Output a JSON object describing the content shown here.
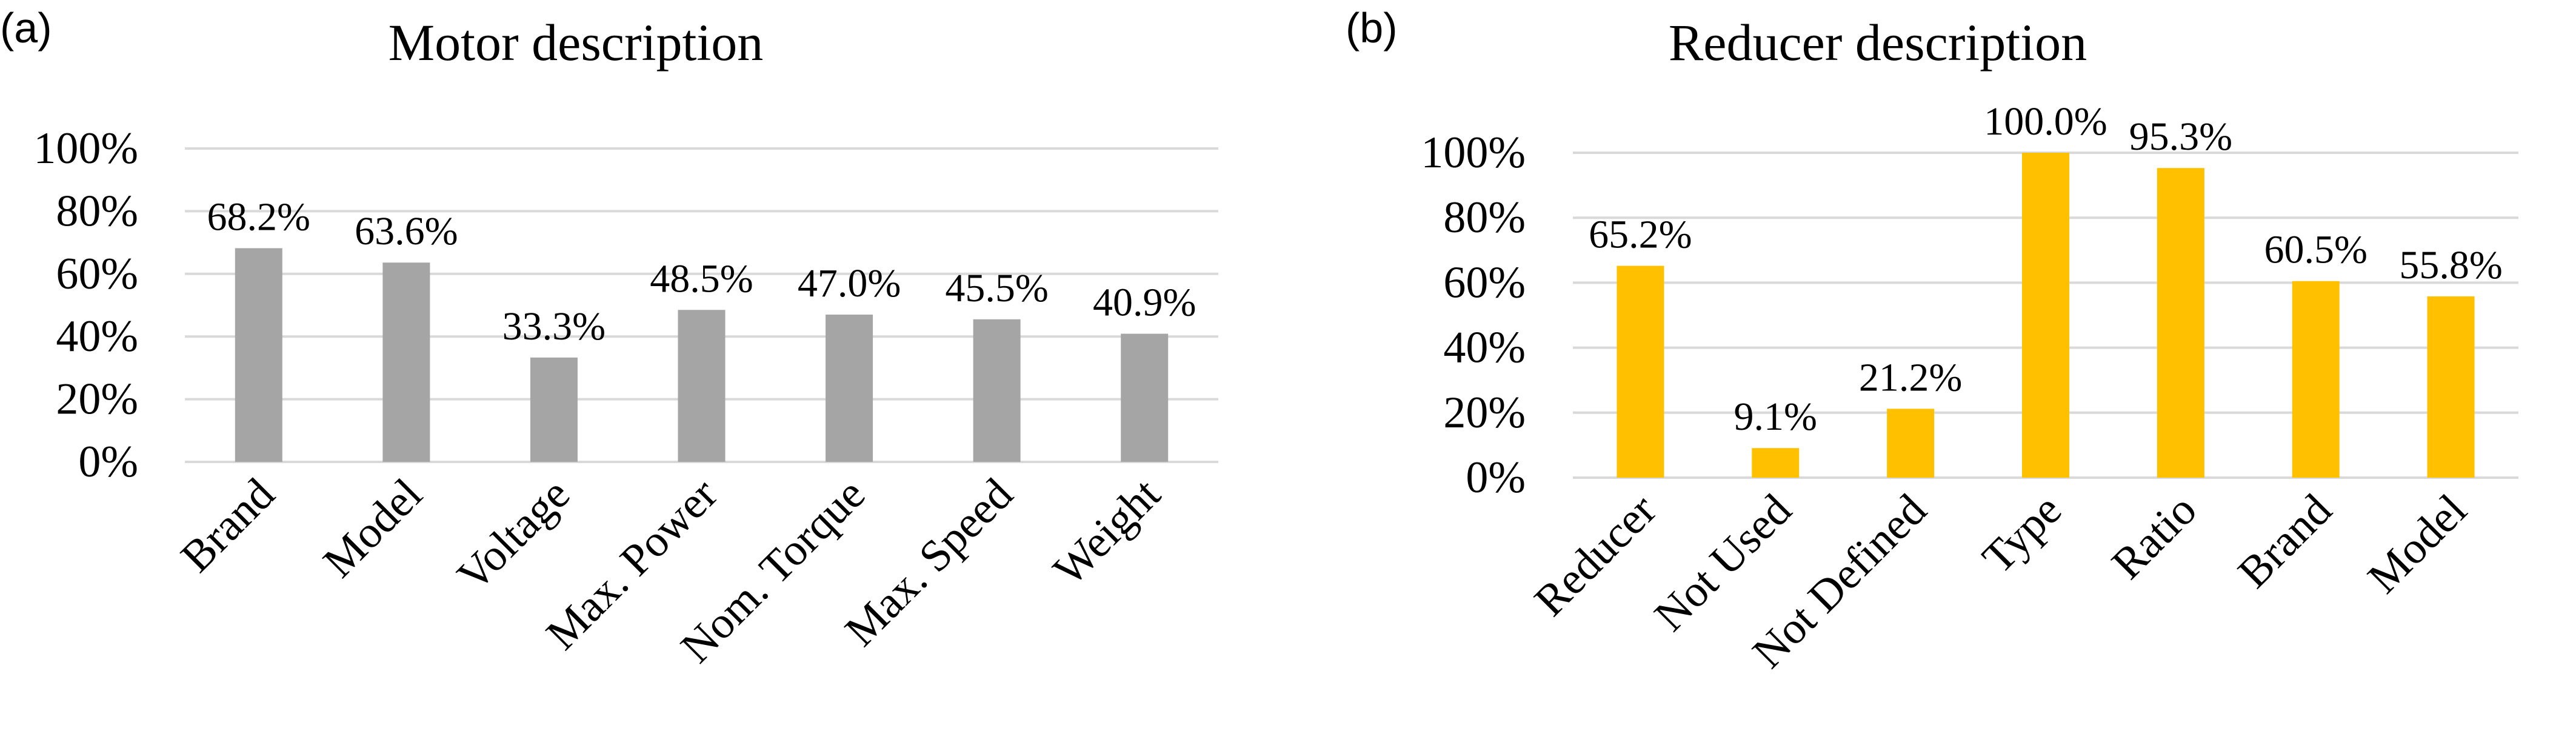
{
  "panels": [
    {
      "label": "(a)",
      "title": "Motor description"
    },
    {
      "label": "(b)",
      "title": "Reducer description"
    }
  ],
  "chart_data": [
    {
      "type": "bar",
      "title": "Motor description",
      "categories": [
        "Brand",
        "Model",
        "Voltage",
        "Max. Power",
        "Nom. Torque",
        "Max. Speed",
        "Weight"
      ],
      "values": [
        68.2,
        63.6,
        33.3,
        48.5,
        47.0,
        45.5,
        40.9
      ],
      "data_labels": [
        "68.2%",
        "63.6%",
        "33.3%",
        "48.5%",
        "47.0%",
        "45.5%",
        "40.9%"
      ],
      "yticks": [
        "0%",
        "20%",
        "40%",
        "60%",
        "80%",
        "100%"
      ],
      "ylim": [
        0,
        100
      ],
      "grid": true,
      "color": "#a5a5a5"
    },
    {
      "type": "bar",
      "title": "Reducer description",
      "categories": [
        "Reducer",
        "Not Used",
        "Not Defined",
        "Type",
        "Ratio",
        "Brand",
        "Model"
      ],
      "values": [
        65.2,
        9.1,
        21.2,
        100.0,
        95.3,
        60.5,
        55.8
      ],
      "data_labels": [
        "65.2%",
        "9.1%",
        "21.2%",
        "100.0%",
        "95.3%",
        "60.5%",
        "55.8%"
      ],
      "yticks": [
        "0%",
        "20%",
        "40%",
        "60%",
        "80%",
        "100%"
      ],
      "ylim": [
        0,
        100
      ],
      "grid": true,
      "color": "#ffc000"
    }
  ]
}
